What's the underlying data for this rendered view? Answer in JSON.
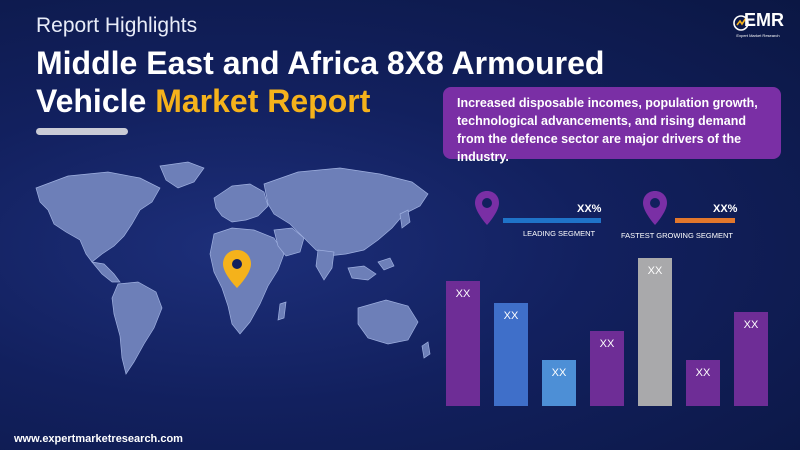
{
  "header": {
    "subtitle": "Report Highlights",
    "title_line1": "Middle East and Africa 8X8 Armoured",
    "title_line2_prefix": "Vehicle ",
    "title_line2_highlight": "Market Report"
  },
  "logo": {
    "text": "EMR",
    "tagline": "Expert Market Research"
  },
  "info": {
    "text": "Increased disposable incomes, population growth, technological advancements, and rising demand from the defence sector are major drivers of the industry."
  },
  "segments": [
    {
      "value": "XX%",
      "label": "LEADING SEGMENT",
      "color": "#1f73c8"
    },
    {
      "value": "XX%",
      "label": "FASTEST GROWING SEGMENT",
      "color": "#e2772c"
    }
  ],
  "chart_data": {
    "type": "bar",
    "categories": [
      "",
      "",
      "",
      "",
      "",
      "",
      ""
    ],
    "values": [
      122,
      100,
      45,
      73,
      144,
      45,
      91
    ],
    "data_labels": [
      "XX",
      "XX",
      "XX",
      "XX",
      "XX",
      "XX",
      "XX"
    ],
    "colors": [
      "#6e2d96",
      "#3f6fc9",
      "#4d8fd6",
      "#6e2d96",
      "#a9a9ab",
      "#6e2d96",
      "#6e2d96"
    ],
    "title": "",
    "xlabel": "",
    "ylabel": ""
  },
  "footer": {
    "url": "www.expertmarketresearch.com"
  },
  "colors": {
    "background": "#0d1a4c",
    "highlight": "#f5b21b",
    "purple": "#7a2fa5",
    "map_fill": "#6d7fb8",
    "map_pin": "#f5b21b"
  },
  "icons": [
    "world-map-icon",
    "location-pin-icon",
    "emr-logo-icon"
  ]
}
